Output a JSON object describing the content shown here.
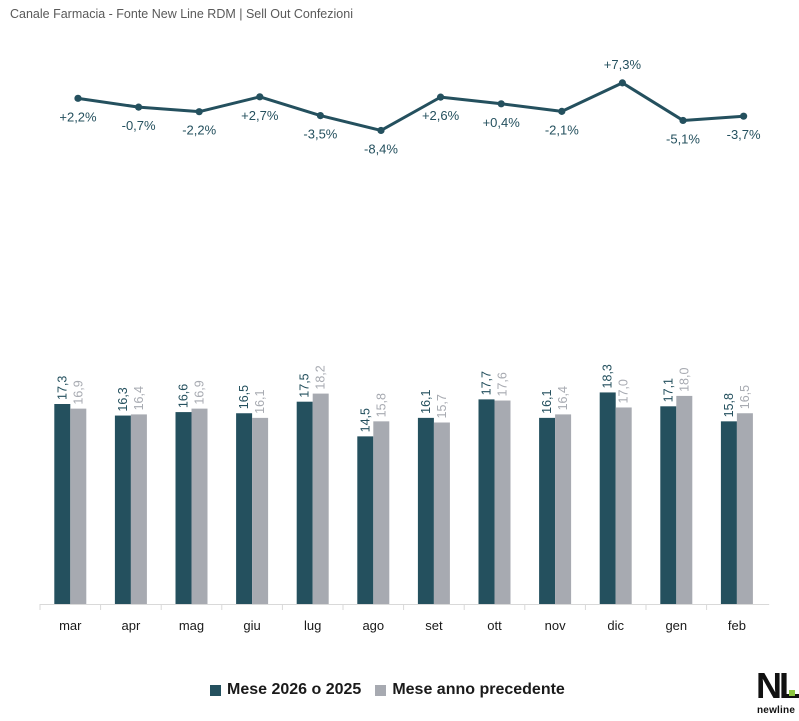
{
  "header": {
    "source": "Canale Farmacia - Fonte New Line RDM | Sell Out Confezioni"
  },
  "legend": {
    "current_label": "Mese 2026 o 2025",
    "previous_label": "Mese anno precedente"
  },
  "logo": {
    "mark": "NL",
    "text": "newline"
  },
  "colors": {
    "current": "#24505e",
    "previous": "#a7aab1",
    "line": "#24505e",
    "axis": "#d9d9d9"
  },
  "chart_data": [
    {
      "type": "bar",
      "categories": [
        "mar",
        "apr",
        "mag",
        "giu",
        "lug",
        "ago",
        "set",
        "ott",
        "nov",
        "dic",
        "gen",
        "feb"
      ],
      "series": [
        {
          "name": "Mese 2026 o 2025",
          "values": [
            17.3,
            16.3,
            16.6,
            16.5,
            17.5,
            14.5,
            16.1,
            17.7,
            16.1,
            18.3,
            17.1,
            15.8
          ],
          "labels": [
            "17,3",
            "16,3",
            "16,6",
            "16,5",
            "17,5",
            "14,5",
            "16,1",
            "17,7",
            "16,1",
            "18,3",
            "17,1",
            "15,8"
          ]
        },
        {
          "name": "Mese anno precedente",
          "values": [
            16.9,
            16.4,
            16.9,
            16.1,
            18.2,
            15.8,
            15.7,
            17.6,
            16.4,
            17.0,
            18.0,
            16.5
          ],
          "labels": [
            "16,9",
            "16,4",
            "16,9",
            "16,1",
            "18,2",
            "15,8",
            "15,7",
            "17,6",
            "16,4",
            "17,0",
            "18,0",
            "16,5"
          ]
        }
      ],
      "ylim": [
        0,
        20
      ],
      "legend_position": "bottom"
    },
    {
      "type": "line",
      "categories": [
        "mar",
        "apr",
        "mag",
        "giu",
        "lug",
        "ago",
        "set",
        "ott",
        "nov",
        "dic",
        "gen",
        "feb"
      ],
      "values": [
        2.2,
        -0.7,
        -2.2,
        2.7,
        -3.5,
        -8.4,
        2.6,
        0.4,
        -2.1,
        7.3,
        -5.1,
        -3.7
      ],
      "labels": [
        "+2,2%",
        "-0,7%",
        "-2,2%",
        "+2,7%",
        "-3,5%",
        "-8,4%",
        "+2,6%",
        "+0,4%",
        "-2,1%",
        "+7,3%",
        "-5,1%",
        "-3,7%"
      ]
    }
  ]
}
